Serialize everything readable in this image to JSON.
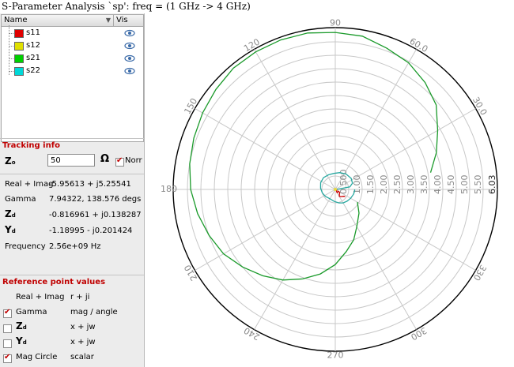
{
  "window": {
    "title": "S-Parameter Analysis `sp': freq = (1 GHz -> 4 GHz)"
  },
  "trace_list": {
    "header_name": "Name",
    "header_vis": "Vis",
    "sort_indicator": "chevron-down-icon",
    "items": [
      {
        "label": "s11",
        "color": "#e00000"
      },
      {
        "label": "s12",
        "color": "#e0e000"
      },
      {
        "label": "s21",
        "color": "#00d000"
      },
      {
        "label": "s22",
        "color": "#00d8d8"
      }
    ]
  },
  "tracking": {
    "title": "Tracking info",
    "z0_label": "Z",
    "z0_sub": "o",
    "z0_value": "50",
    "ohm_symbol": "Ω",
    "norm_label": "Norr",
    "norm_checked": true,
    "real_imag_label": "Real + Imag",
    "real_imag_value": "-5.95613 + j5.25541",
    "gamma_label": "Gamma",
    "gamma_value": "7.94322, 138.576 degs",
    "zd_label": "Z",
    "zd_sub": "d",
    "zd_value": "-0.816961 + j0.138287",
    "yd_label": "Y",
    "yd_sub": "d",
    "yd_value": "-1.18995 - j0.201424",
    "freq_label": "Frequency",
    "freq_value": "2.56e+09 Hz"
  },
  "reference": {
    "title": "Reference point values",
    "rows": [
      {
        "label": "Real + Imag",
        "value": "r + ji",
        "checkbox": false,
        "checked": false,
        "sub": ""
      },
      {
        "label": "Gamma",
        "value": "mag / angle",
        "checkbox": true,
        "checked": true,
        "sub": ""
      },
      {
        "label": "Z",
        "value": "x + jw",
        "checkbox": true,
        "checked": false,
        "sub": "d"
      },
      {
        "label": "Y",
        "value": "x + jw",
        "checkbox": true,
        "checked": false,
        "sub": "d"
      },
      {
        "label": "Mag Circle",
        "value": "scalar",
        "checkbox": true,
        "checked": true,
        "sub": ""
      }
    ]
  },
  "chart_data": {
    "type": "line",
    "projection": "polar",
    "max_radius": 6.03,
    "radial_ticks": [
      0.5,
      1.0,
      1.5,
      2.0,
      2.5,
      3.0,
      3.5,
      4.0,
      4.5,
      5.0,
      5.5,
      6.03
    ],
    "radial_tick_labels": [
      "0.500",
      "1.00",
      "1.50",
      "2.00",
      "2.50",
      "3.00",
      "3.50",
      "4.00",
      "4.50",
      "5.00",
      "5.50",
      "6.03"
    ],
    "angle_ticks": [
      0,
      30,
      60,
      90,
      120,
      150,
      180,
      210,
      240,
      270,
      300,
      330
    ],
    "angle_tick_labels": [
      "",
      "30.0",
      "60.0",
      "90",
      "120",
      "150",
      "180",
      "210",
      "240",
      "270",
      "300",
      "330"
    ],
    "grid": true,
    "series": [
      {
        "name": "s21",
        "color": "#1a9a2a",
        "points": [
          [
            3.6,
            10
          ],
          [
            4.0,
            20
          ],
          [
            4.4,
            30
          ],
          [
            4.9,
            40
          ],
          [
            5.2,
            50
          ],
          [
            5.45,
            60
          ],
          [
            5.6,
            70
          ],
          [
            5.8,
            80
          ],
          [
            5.85,
            90
          ],
          [
            5.92,
            100
          ],
          [
            5.93,
            110
          ],
          [
            5.92,
            120
          ],
          [
            5.9,
            130
          ],
          [
            5.8,
            140
          ],
          [
            5.7,
            150
          ],
          [
            5.6,
            160
          ],
          [
            5.5,
            170
          ],
          [
            5.38,
            180
          ],
          [
            5.2,
            190
          ],
          [
            5.0,
            200
          ],
          [
            4.8,
            210
          ],
          [
            4.5,
            220
          ],
          [
            4.2,
            230
          ],
          [
            3.9,
            240
          ],
          [
            3.55,
            250
          ],
          [
            3.2,
            260
          ],
          [
            2.8,
            270
          ],
          [
            2.35,
            280
          ],
          [
            2.0,
            290
          ],
          [
            1.6,
            300
          ],
          [
            1.25,
            315
          ],
          [
            0.95,
            330
          ]
        ]
      },
      {
        "name": "s22",
        "color": "#27a8a0",
        "points": [
          [
            0.05,
            0
          ],
          [
            0.55,
            10
          ],
          [
            0.68,
            20
          ],
          [
            0.72,
            35
          ],
          [
            0.7,
            55
          ],
          [
            0.65,
            75
          ],
          [
            0.6,
            95
          ],
          [
            0.6,
            115
          ],
          [
            0.62,
            135
          ],
          [
            0.6,
            155
          ],
          [
            0.55,
            175
          ],
          [
            0.5,
            195
          ],
          [
            0.45,
            215
          ],
          [
            0.4,
            240
          ],
          [
            0.45,
            265
          ],
          [
            0.52,
            285
          ],
          [
            0.58,
            300
          ],
          [
            0.62,
            315
          ],
          [
            0.66,
            330
          ],
          [
            0.7,
            345
          ],
          [
            0.72,
            355
          ],
          [
            0.72,
            360
          ]
        ]
      },
      {
        "name": "s11",
        "color": "#cc0000",
        "points": [
          [
            0.05,
            0
          ],
          [
            0.1,
            300
          ],
          [
            0.14,
            300
          ],
          [
            0.13,
            330
          ],
          [
            0.2,
            325
          ],
          [
            0.24,
            310
          ],
          [
            0.3,
            300
          ],
          [
            0.35,
            310
          ],
          [
            0.4,
            320
          ],
          [
            0.45,
            325
          ]
        ]
      }
    ]
  }
}
